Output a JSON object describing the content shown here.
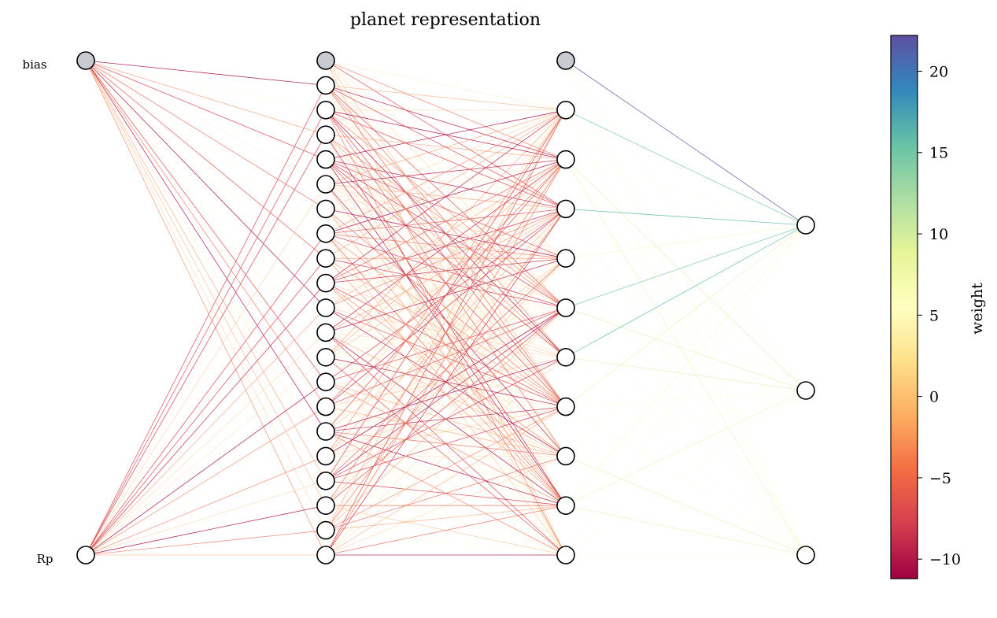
{
  "title": "planet representation",
  "input_labels": [
    "bias",
    "Rp"
  ],
  "layers": [
    {
      "name": "input",
      "bias": true,
      "size": 1
    },
    {
      "name": "hidden1",
      "bias": true,
      "size": 20
    },
    {
      "name": "hidden2",
      "bias": true,
      "size": 10
    },
    {
      "name": "output",
      "bias": false,
      "size": 3
    }
  ],
  "colorbar": {
    "label": "weight",
    "min": -11.2,
    "max": 22.2,
    "ticks": [
      -10,
      -5,
      0,
      5,
      10,
      15,
      20
    ],
    "tick_labels": [
      "−10",
      "−5",
      "0",
      "5",
      "10",
      "15",
      "20"
    ],
    "colormap": "Spectral",
    "stops": [
      "#9e0142",
      "#d53e4f",
      "#f46d43",
      "#fdae61",
      "#fee08b",
      "#ffffbf",
      "#e6f598",
      "#abdda4",
      "#66c2a5",
      "#3288bd",
      "#5e4fa2"
    ]
  },
  "colors": {
    "bias_node_fill": "#c8ccd2",
    "node_fill": "#ffffff",
    "node_stroke": "#000000"
  }
}
